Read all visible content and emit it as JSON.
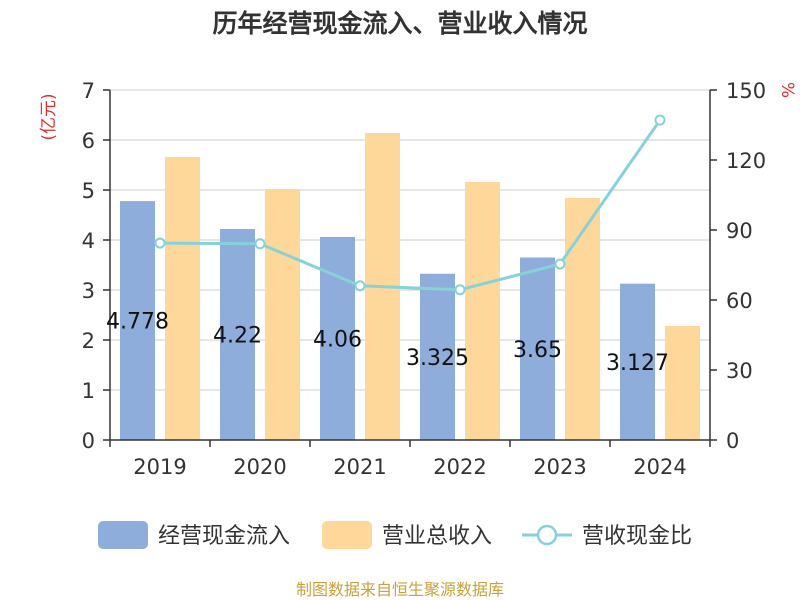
{
  "footer": "制图数据来自恒生聚源数据库",
  "footer_color": "#c9a23c",
  "chart_data": {
    "type": "bar",
    "title": "历年经营现金流入、营业收入情况",
    "categories": [
      "2019",
      "2020",
      "2021",
      "2022",
      "2023",
      "2024"
    ],
    "ylabel": "(亿元)",
    "y2label": "%",
    "axis_label_color": "#e0302a",
    "ylim": [
      0,
      7
    ],
    "y2lim": [
      0,
      150
    ],
    "y_ticks": [
      0,
      1,
      2,
      3,
      4,
      5,
      6,
      7
    ],
    "y2_ticks": [
      0,
      30,
      60,
      90,
      120,
      150
    ],
    "grid": true,
    "legend_position": "bottom",
    "series": [
      {
        "name": "经营现金流入",
        "type": "bar",
        "axis": "left",
        "color": "#8eaddb",
        "data_labels": true,
        "values": [
          4.778,
          4.22,
          4.06,
          3.325,
          3.65,
          3.127
        ]
      },
      {
        "name": "营业总收入",
        "type": "bar",
        "axis": "left",
        "color": "#fed89b",
        "data_labels": false,
        "values": [
          5.66,
          5.02,
          6.14,
          5.16,
          4.84,
          2.28
        ]
      },
      {
        "name": "营收现金比",
        "type": "line",
        "axis": "right",
        "color": "#86d2d8",
        "data_labels": false,
        "values": [
          84.4,
          84.1,
          66.1,
          64.4,
          75.4,
          137.1
        ]
      }
    ]
  }
}
